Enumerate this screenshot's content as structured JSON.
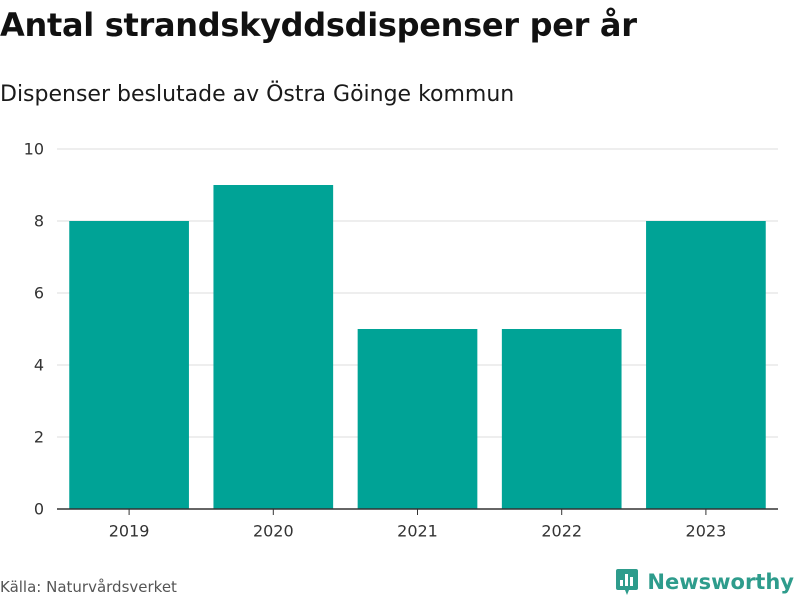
{
  "header": {
    "title": "Antal strandskyddsdispenser per år",
    "subtitle": "Dispenser beslutade av Östra Göinge kommun"
  },
  "footer": {
    "source": "Källa: Naturvårdsverket",
    "brand": "Newsworthy",
    "brand_icon": "newsworthy-logo-icon",
    "brand_color": "#2e9c8c"
  },
  "chart_data": {
    "type": "bar",
    "categories": [
      "2019",
      "2020",
      "2021",
      "2022",
      "2023"
    ],
    "values": [
      8,
      9,
      5,
      5,
      8
    ],
    "title": "Antal strandskyddsdispenser per år",
    "subtitle": "Dispenser beslutade av Östra Göinge kommun",
    "xlabel": "",
    "ylabel": "",
    "ylim": [
      0,
      10
    ],
    "yticks": [
      0,
      2,
      4,
      6,
      8,
      10
    ],
    "grid": true,
    "legend": "none",
    "bar_color": "#00a396",
    "grid_color": "#dcdcdc",
    "axis_color": "#333333"
  }
}
